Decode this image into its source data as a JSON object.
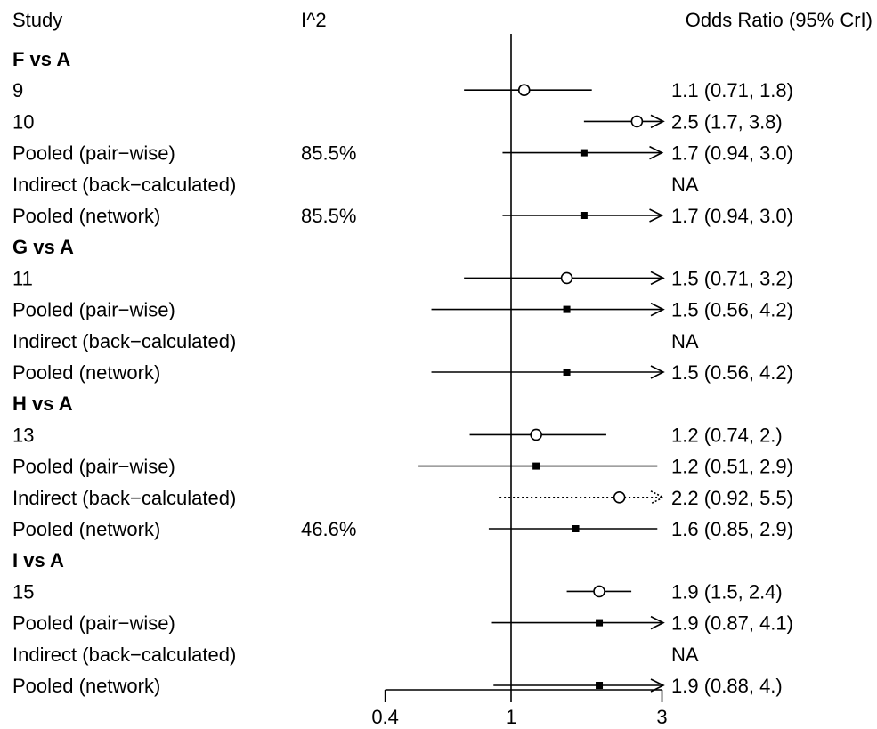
{
  "header": {
    "study": "Study",
    "i2": "I^2",
    "effect": "Odds Ratio (95% CrI)"
  },
  "chart_data": {
    "type": "forest",
    "scale": "log",
    "x_ticks": [
      0.4,
      1,
      3
    ],
    "x_tick_labels": [
      "0.4",
      "1",
      "3"
    ],
    "xlim": [
      0.4,
      3
    ],
    "reference_line": 1,
    "rows": [
      {
        "kind": "group",
        "label": "F vs A"
      },
      {
        "kind": "study",
        "label": "9",
        "i2": "",
        "or": 1.1,
        "lo": 0.71,
        "hi": 1.8,
        "text": "1.1 (0.71, 1.8)",
        "marker": "circle",
        "arrow": false,
        "dotted": false
      },
      {
        "kind": "study",
        "label": "10",
        "i2": "",
        "or": 2.5,
        "lo": 1.7,
        "hi": 3.8,
        "text": "2.5 (1.7, 3.8)",
        "marker": "circle",
        "arrow": true,
        "dotted": false
      },
      {
        "kind": "pooled",
        "label": "Pooled (pair−wise)",
        "i2": "85.5%",
        "or": 1.7,
        "lo": 0.94,
        "hi": 3.0,
        "text": "1.7 (0.94, 3.0)",
        "marker": "square",
        "arrow": true,
        "dotted": false
      },
      {
        "kind": "indirect",
        "label": "Indirect (back−calculated)",
        "i2": "",
        "or": null,
        "lo": null,
        "hi": null,
        "text": "NA",
        "marker": "none",
        "arrow": false,
        "dotted": false
      },
      {
        "kind": "pooled",
        "label": "Pooled (network)",
        "i2": "85.5%",
        "or": 1.7,
        "lo": 0.94,
        "hi": 3.0,
        "text": "1.7 (0.94, 3.0)",
        "marker": "square",
        "arrow": true,
        "dotted": false
      },
      {
        "kind": "group",
        "label": "G vs A"
      },
      {
        "kind": "study",
        "label": "11",
        "i2": "",
        "or": 1.5,
        "lo": 0.71,
        "hi": 3.2,
        "text": "1.5 (0.71, 3.2)",
        "marker": "circle",
        "arrow": true,
        "dotted": false
      },
      {
        "kind": "pooled",
        "label": "Pooled (pair−wise)",
        "i2": "",
        "or": 1.5,
        "lo": 0.56,
        "hi": 4.2,
        "text": "1.5 (0.56, 4.2)",
        "marker": "square",
        "arrow": true,
        "dotted": false
      },
      {
        "kind": "indirect",
        "label": "Indirect (back−calculated)",
        "i2": "",
        "or": null,
        "lo": null,
        "hi": null,
        "text": "NA",
        "marker": "none",
        "arrow": false,
        "dotted": false
      },
      {
        "kind": "pooled",
        "label": "Pooled (network)",
        "i2": "",
        "or": 1.5,
        "lo": 0.56,
        "hi": 4.2,
        "text": "1.5 (0.56, 4.2)",
        "marker": "square",
        "arrow": true,
        "dotted": false
      },
      {
        "kind": "group",
        "label": "H vs A"
      },
      {
        "kind": "study",
        "label": "13",
        "i2": "",
        "or": 1.2,
        "lo": 0.74,
        "hi": 2.0,
        "text": "1.2 (0.74,  2.)",
        "marker": "circle",
        "arrow": false,
        "dotted": false
      },
      {
        "kind": "pooled",
        "label": "Pooled (pair−wise)",
        "i2": "",
        "or": 1.2,
        "lo": 0.51,
        "hi": 2.9,
        "text": "1.2 (0.51, 2.9)",
        "marker": "square",
        "arrow": false,
        "dotted": false
      },
      {
        "kind": "indirect",
        "label": "Indirect (back−calculated)",
        "i2": "",
        "or": 2.2,
        "lo": 0.92,
        "hi": 5.5,
        "text": "2.2 (0.92, 5.5)",
        "marker": "circle",
        "arrow": true,
        "dotted": true
      },
      {
        "kind": "pooled",
        "label": "Pooled (network)",
        "i2": "46.6%",
        "or": 1.6,
        "lo": 0.85,
        "hi": 2.9,
        "text": "1.6 (0.85, 2.9)",
        "marker": "square",
        "arrow": false,
        "dotted": false
      },
      {
        "kind": "group",
        "label": "I vs A"
      },
      {
        "kind": "study",
        "label": "15",
        "i2": "",
        "or": 1.9,
        "lo": 1.5,
        "hi": 2.4,
        "text": "1.9 (1.5, 2.4)",
        "marker": "circle",
        "arrow": false,
        "dotted": false
      },
      {
        "kind": "pooled",
        "label": "Pooled (pair−wise)",
        "i2": "",
        "or": 1.9,
        "lo": 0.87,
        "hi": 4.1,
        "text": "1.9 (0.87, 4.1)",
        "marker": "square",
        "arrow": true,
        "dotted": false
      },
      {
        "kind": "indirect",
        "label": "Indirect (back−calculated)",
        "i2": "",
        "or": null,
        "lo": null,
        "hi": null,
        "text": "NA",
        "marker": "none",
        "arrow": false,
        "dotted": false
      },
      {
        "kind": "pooled",
        "label": "Pooled (network)",
        "i2": "",
        "or": 1.9,
        "lo": 0.88,
        "hi": 4.0,
        "text": "1.9 (0.88,  4.)",
        "marker": "square",
        "arrow": true,
        "dotted": false
      }
    ]
  }
}
